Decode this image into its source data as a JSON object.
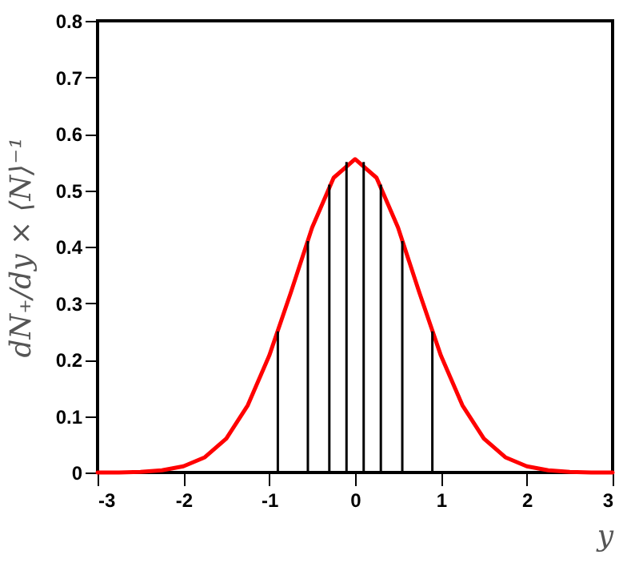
{
  "chart_data": {
    "type": "line",
    "xlabel": "y",
    "ylabel": "dN₊/dy  ×  ⟨N⟩⁻¹",
    "xlim": [
      -3,
      3
    ],
    "xticks": [
      -3,
      -2,
      -1,
      0,
      1,
      2,
      3
    ],
    "ylim": [
      0,
      0.8
    ],
    "yticks": [
      0,
      0.1,
      0.2,
      0.3,
      0.4,
      0.5,
      0.6,
      0.7,
      0.8
    ],
    "grid": false,
    "series": [
      {
        "color": "#ff0000",
        "x": [
          -3,
          -2.75,
          -2.5,
          -2.25,
          -2,
          -1.75,
          -1.5,
          -1.25,
          -1,
          -0.75,
          -0.5,
          -0.25,
          0,
          0.25,
          0.5,
          0.75,
          1,
          1.25,
          1.5,
          1.75,
          2,
          2.25,
          2.5,
          2.75,
          3
        ],
        "values": [
          0,
          0,
          0.001,
          0.004,
          0.011,
          0.027,
          0.06,
          0.119,
          0.207,
          0.318,
          0.434,
          0.522,
          0.555,
          0.522,
          0.434,
          0.318,
          0.207,
          0.119,
          0.06,
          0.027,
          0.011,
          0.004,
          0.001,
          0,
          0
        ]
      },
      {
        "type": "bar",
        "color": "#000000",
        "x": [
          -0.9,
          -0.55,
          -0.3,
          -0.1,
          0.1,
          0.3,
          0.55,
          0.9
        ],
        "values": [
          0.25,
          0.41,
          0.51,
          0.55,
          0.55,
          0.51,
          0.41,
          0.25
        ]
      }
    ]
  }
}
